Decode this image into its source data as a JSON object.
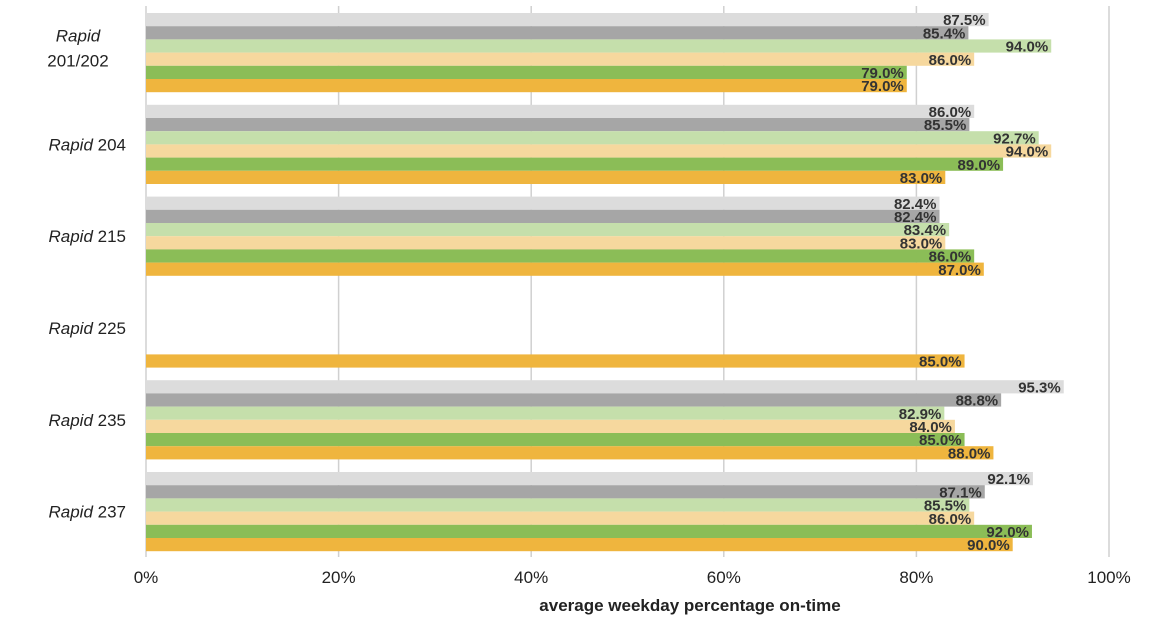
{
  "chart_data": {
    "type": "bar",
    "orientation": "horizontal",
    "categories": [
      {
        "prefix": "Rapid",
        "suffix": "201/202"
      },
      {
        "prefix": "Rapid",
        "suffix": "204"
      },
      {
        "prefix": "Rapid",
        "suffix": "215"
      },
      {
        "prefix": "Rapid",
        "suffix": "225"
      },
      {
        "prefix": "Rapid",
        "suffix": "235"
      },
      {
        "prefix": "Rapid",
        "suffix": "237"
      }
    ],
    "series": [
      {
        "color": "#dcdcdc",
        "values": [
          87.5,
          86.0,
          82.4,
          null,
          95.3,
          92.1
        ],
        "labels": [
          "87.5%",
          "86.0%",
          "82.4%",
          "",
          "95.3%",
          "92.1%"
        ]
      },
      {
        "color": "#a6a6a6",
        "values": [
          85.4,
          85.5,
          82.4,
          null,
          88.8,
          87.1
        ],
        "labels": [
          "85.4%",
          "85.5%",
          "82.4%",
          "",
          "88.8%",
          "87.1%"
        ]
      },
      {
        "color": "#c5dfab",
        "values": [
          94.0,
          92.7,
          83.4,
          null,
          82.9,
          85.5
        ],
        "labels": [
          "94.0%",
          "92.7%",
          "83.4%",
          "",
          "82.9%",
          "85.5%"
        ]
      },
      {
        "color": "#f6d89e",
        "values": [
          86.0,
          94.0,
          83.0,
          null,
          84.0,
          86.0
        ],
        "labels": [
          "86.0%",
          "94.0%",
          "83.0%",
          "",
          "84.0%",
          "86.0%"
        ]
      },
      {
        "color": "#8bbd57",
        "values": [
          79.0,
          89.0,
          86.0,
          null,
          85.0,
          92.0
        ],
        "labels": [
          "79.0%",
          "89.0%",
          "86.0%",
          "",
          "85.0%",
          "92.0%"
        ]
      },
      {
        "color": "#efb53e",
        "values": [
          79.0,
          83.0,
          87.0,
          85.0,
          88.0,
          90.0
        ],
        "labels": [
          "79.0%",
          "83.0%",
          "87.0%",
          "85.0%",
          "88.0%",
          "90.0%"
        ]
      }
    ],
    "xlim": [
      0,
      100
    ],
    "xticks": [
      "0%",
      "20%",
      "40%",
      "60%",
      "80%",
      "100%"
    ],
    "xtick_values": [
      0,
      20,
      40,
      60,
      80,
      100
    ],
    "xlabel": "average weekday percentage on-time",
    "ylabel": "",
    "title": "",
    "grid": "vertical",
    "legend": "none",
    "gridline_color": "#d0d0d0"
  }
}
